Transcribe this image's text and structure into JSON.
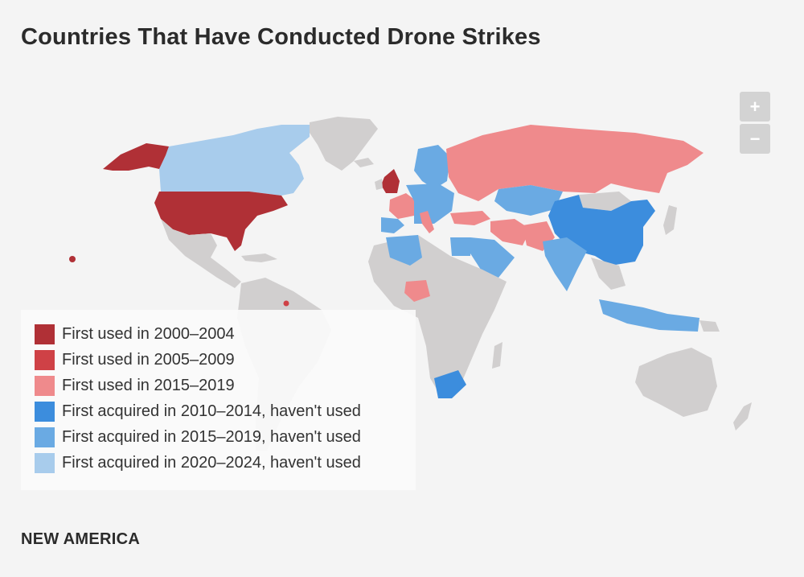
{
  "title": "Countries That Have Conducted Drone Strikes",
  "zoom": {
    "in_label": "+",
    "out_label": "−"
  },
  "colors": {
    "background": "#f4f4f4",
    "no_data": "#d1cfcf",
    "used_2000_2004": "#b03036",
    "used_2005_2009": "#cf4146",
    "used_2015_2019": "#ef8a8c",
    "acquired_2010_2014": "#3c8ddd",
    "acquired_2015_2019": "#6aaae3",
    "acquired_2020_2024": "#a8ccec"
  },
  "legend": [
    {
      "label": "First used in 2000–2004",
      "color": "#b03036"
    },
    {
      "label": "First used in 2005–2009",
      "color": "#cf4146"
    },
    {
      "label": "First used in 2015–2019",
      "color": "#ef8a8c"
    },
    {
      "label": "First acquired in 2010–2014, haven't used",
      "color": "#3c8ddd"
    },
    {
      "label": "First acquired in 2015–2019, haven't used",
      "color": "#6aaae3"
    },
    {
      "label": "First acquired in 2020–2024, haven't used",
      "color": "#a8ccec"
    }
  ],
  "footer": "NEW AMERICA"
}
